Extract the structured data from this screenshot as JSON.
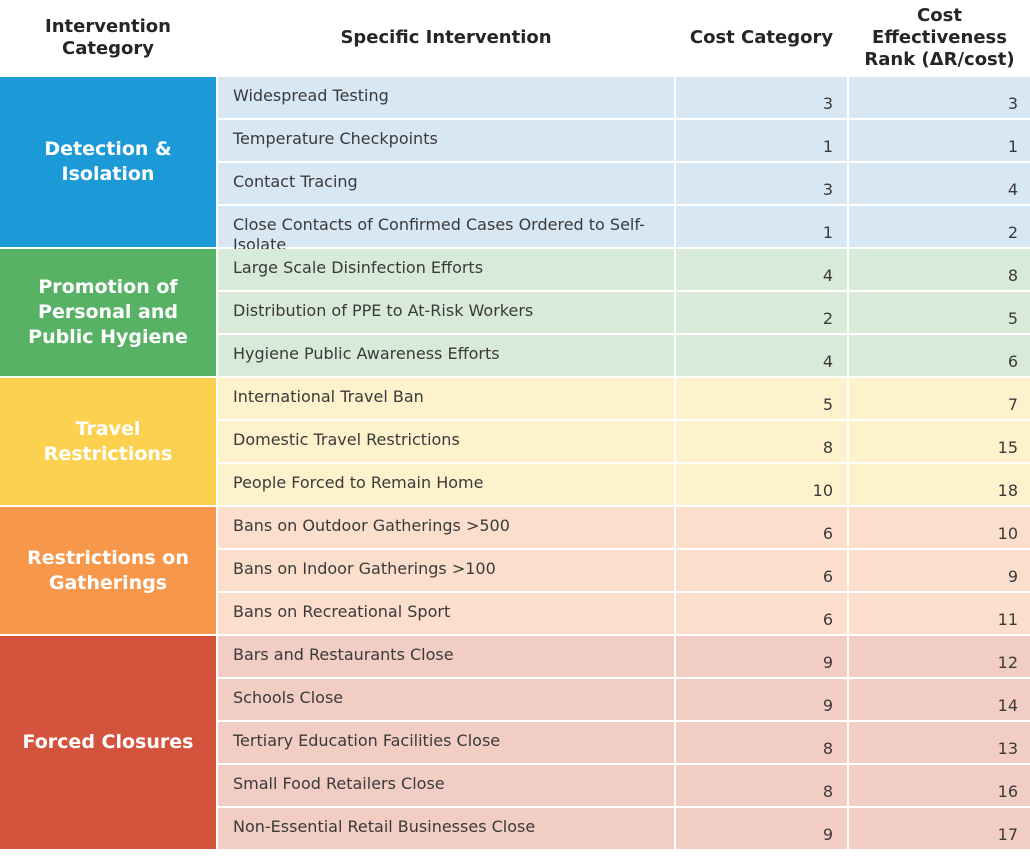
{
  "headers": {
    "category": "Intervention Category",
    "intervention": "Specific Intervention",
    "cost_category": "Cost Category",
    "rank": "Cost Effectiveness Rank (ΔR/cost)"
  },
  "groups": [
    {
      "name": "Detection & Isolation",
      "color": "#1c9ad8",
      "light": "#d8e7f4",
      "rows": [
        {
          "intervention": "Widespread Testing",
          "cost": "3",
          "rank": "3"
        },
        {
          "intervention": "Temperature Checkpoints",
          "cost": "1",
          "rank": "1"
        },
        {
          "intervention": "Contact Tracing",
          "cost": "3",
          "rank": "4"
        },
        {
          "intervention": "Close Contacts of Confirmed Cases Ordered to Self-Isolate",
          "cost": "1",
          "rank": "2"
        }
      ]
    },
    {
      "name": "Promotion of Personal and Public Hygiene",
      "color": "#58b266",
      "light": "#d8ead8",
      "rows": [
        {
          "intervention": "Large Scale Disinfection Efforts",
          "cost": "4",
          "rank": "8"
        },
        {
          "intervention": "Distribution of PPE to At-Risk Workers",
          "cost": "2",
          "rank": "5"
        },
        {
          "intervention": "Hygiene Public Awareness Efforts",
          "cost": "4",
          "rank": "6"
        }
      ]
    },
    {
      "name": "Travel Restrictions",
      "color": "#fcd14f",
      "light": "#fdf2cc",
      "rows": [
        {
          "intervention": "International Travel Ban",
          "cost": "5",
          "rank": "7"
        },
        {
          "intervention": "Domestic Travel Restrictions",
          "cost": "8",
          "rank": "15"
        },
        {
          "intervention": "People Forced to Remain Home",
          "cost": "10",
          "rank": "18"
        }
      ]
    },
    {
      "name": "Restrictions on Gatherings",
      "color": "#f6974b",
      "light": "#fbdfcc",
      "rows": [
        {
          "intervention": "Bans on Outdoor Gatherings >500",
          "cost": "6",
          "rank": "10"
        },
        {
          "intervention": "Bans on Indoor Gatherings >100",
          "cost": "6",
          "rank": "9"
        },
        {
          "intervention": "Bans on Recreational Sport",
          "cost": "6",
          "rank": "11"
        }
      ]
    },
    {
      "name": "Forced Closures",
      "color": "#d4533c",
      "light": "#f2cdc3",
      "rows": [
        {
          "intervention": "Bars and Restaurants Close",
          "cost": "9",
          "rank": "12"
        },
        {
          "intervention": "Schools Close",
          "cost": "9",
          "rank": "14"
        },
        {
          "intervention": "Tertiary Education Facilities Close",
          "cost": "8",
          "rank": "13"
        },
        {
          "intervention": "Small Food Retailers Close",
          "cost": "8",
          "rank": "16"
        },
        {
          "intervention": "Non-Essential Retail Businesses Close",
          "cost": "9",
          "rank": "17"
        }
      ]
    }
  ]
}
